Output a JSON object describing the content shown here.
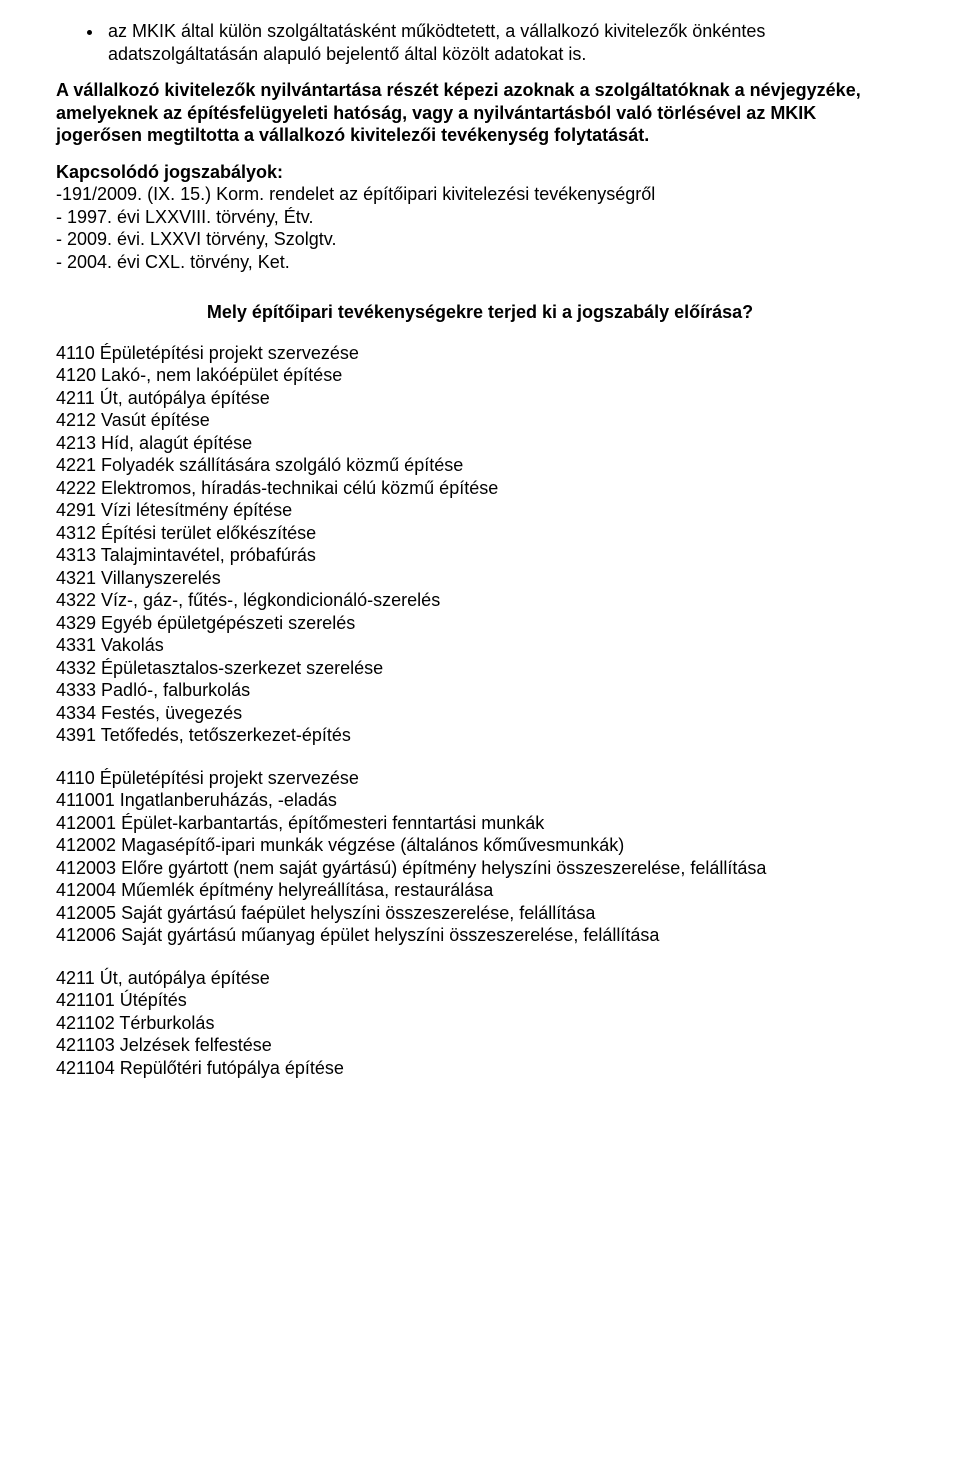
{
  "bullet_item": "az MKIK által külön szolgáltatásként működtetett, a vállalkozó kivitelezők önkéntes adatszolgáltatásán alapuló bejelentő által közölt adatokat is.",
  "para1": "A vállalkozó kivitelezők nyilvántartása részét képezi azoknak a szolgáltatóknak a névjegyzéke, amelyeknek az építésfelügyeleti hatóság, vagy a nyilvántartásból való törlésével az MKIK jogerősen megtiltotta a vállalkozó kivitelezői tevékenység folytatását.",
  "related_heading": "Kapcsolódó jogszabályok:",
  "related_items": [
    "-191/2009. (IX. 15.) Korm. rendelet az építőipari kivitelezési tevékenységről",
    "- 1997. évi LXXVIII. törvény, Étv.",
    "- 2009. évi. LXXVI törvény, Szolgtv.",
    "- 2004. évi CXL. törvény, Ket."
  ],
  "section_heading": "Mely építőipari tevékenységekre terjed ki a jogszabály előírása?",
  "list_a": [
    "4110 Épületépítési projekt szervezése",
    "4120 Lakó-, nem lakóépület építése",
    "4211 Út, autópálya építése",
    "4212 Vasút építése",
    "4213 Híd, alagút építése",
    "4221 Folyadék szállítására szolgáló közmű építése",
    "4222 Elektromos, híradás-technikai célú közmű építése",
    "4291 Vízi létesítmény építése",
    "4312 Építési terület előkészítése",
    "4313 Talajmintavétel, próbafúrás",
    "4321 Villanyszerelés",
    "4322 Víz-, gáz-, fűtés-, légkondicionáló-szerelés",
    "4329 Egyéb épületgépészeti szerelés",
    "4331 Vakolás",
    "4332 Épületasztalos-szerkezet szerelése",
    "4333 Padló-, falburkolás",
    "4334 Festés, üvegezés",
    "4391 Tetőfedés, tetőszerkezet-építés"
  ],
  "group_b": {
    "title": "4110 Épületépítési projekt szervezése",
    "items": [
      "411001 Ingatlanberuházás, -eladás",
      "412001 Épület-karbantartás, építőmesteri fenntartási munkák",
      "412002 Magasépítő-ipari munkák végzése (általános kőművesmunkák)",
      "412003 Előre gyártott (nem saját gyártású) építmény helyszíni összeszerelése, felállítása",
      "412004 Műemlék építmény helyreállítása, restaurálása",
      "412005 Saját gyártású faépület helyszíni összeszerelése, felállítása",
      "412006 Saját gyártású műanyag épület helyszíni összeszerelése, felállítása"
    ]
  },
  "group_c": {
    "title": "4211 Út, autópálya építése",
    "items": [
      "421101 Útépítés",
      "421102 Térburkolás",
      "421103 Jelzések felfestése",
      "421104 Repülőtéri futópálya építése"
    ]
  }
}
